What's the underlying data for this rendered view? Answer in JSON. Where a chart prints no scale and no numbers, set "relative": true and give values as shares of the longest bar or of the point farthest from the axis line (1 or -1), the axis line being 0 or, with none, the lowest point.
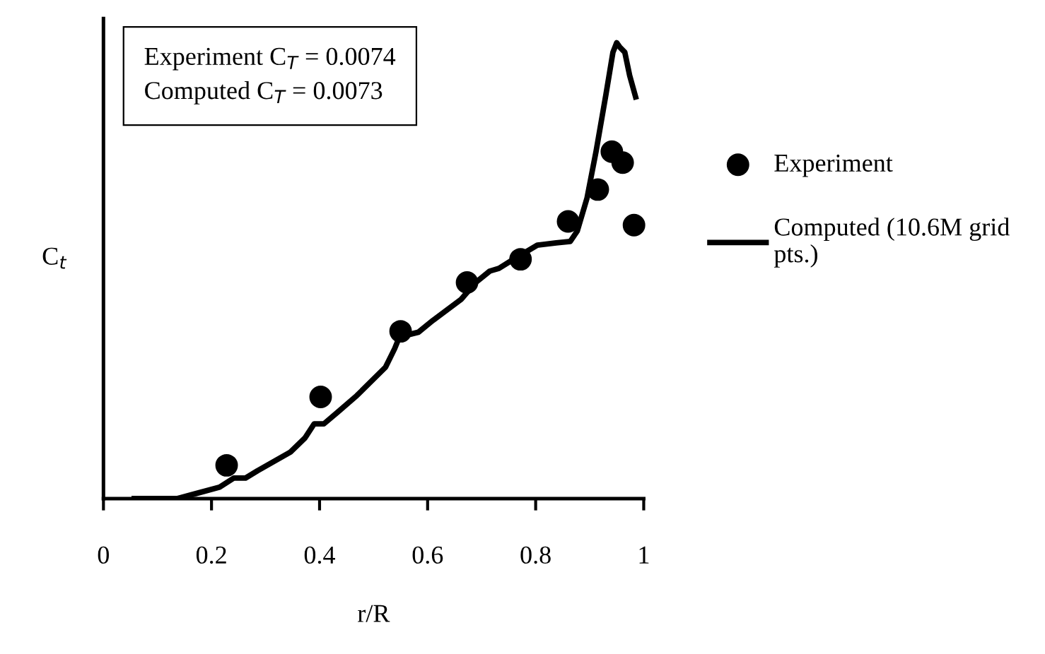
{
  "chart_data": {
    "type": "scatter",
    "relative": true,
    "xlabel": "r/R",
    "ylabel": "C$_{t}$",
    "xlim": [
      0,
      1
    ],
    "xticks": [
      0,
      0.2,
      0.4,
      0.6,
      0.8,
      1
    ],
    "grid": false,
    "legend": "right",
    "annotations": [
      "Experiment C$_{T}$ = 0.0074",
      "Computed C$_{T}$ = 0.0073"
    ],
    "series": [
      {
        "name": "Experiment",
        "marker": "circle",
        "color": "#000000",
        "x": [
          0.228,
          0.402,
          0.55,
          0.673,
          0.772,
          0.86,
          0.915,
          0.941,
          0.961,
          0.982
        ],
        "values": [
          0.073,
          0.223,
          0.367,
          0.474,
          0.525,
          0.608,
          0.678,
          0.761,
          0.737,
          0.6
        ]
      },
      {
        "name": "Computed (10.6M grid pts.)",
        "type": "line",
        "line_style": "solid",
        "color": "#000000",
        "x": [
          0.057,
          0.136,
          0.171,
          0.215,
          0.241,
          0.263,
          0.285,
          0.346,
          0.373,
          0.39,
          0.408,
          0.434,
          0.469,
          0.522,
          0.539,
          0.548,
          0.566,
          0.583,
          0.61,
          0.662,
          0.689,
          0.715,
          0.732,
          0.759,
          0.803,
          0.838,
          0.864,
          0.877,
          0.895,
          0.912,
          0.93,
          0.943,
          0.95,
          0.956,
          0.965,
          0.974,
          0.985
        ],
        "values": [
          0,
          0,
          0.011,
          0.025,
          0.045,
          0.045,
          0.061,
          0.102,
          0.133,
          0.164,
          0.164,
          0.19,
          0.226,
          0.288,
          0.329,
          0.355,
          0.36,
          0.365,
          0.391,
          0.437,
          0.474,
          0.499,
          0.505,
          0.525,
          0.556,
          0.561,
          0.564,
          0.587,
          0.659,
          0.763,
          0.886,
          0.979,
          1.0,
          0.99,
          0.979,
          0.928,
          0.881
        ]
      }
    ]
  }
}
